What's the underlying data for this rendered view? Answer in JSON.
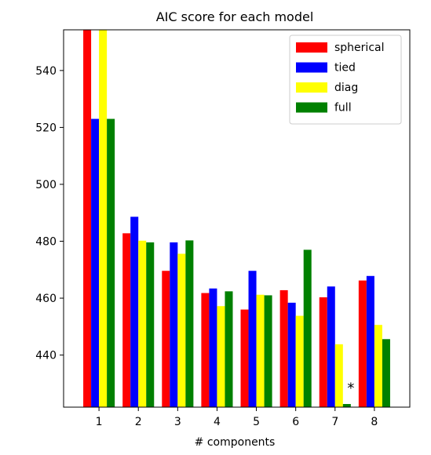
{
  "chart_data": {
    "type": "bar",
    "title": "AIC score for each model",
    "xlabel": "# components",
    "ylabel": "",
    "categories": [
      "1",
      "2",
      "3",
      "4",
      "5",
      "6",
      "7",
      "8"
    ],
    "series": [
      {
        "name": "spherical",
        "color": "#ff0000",
        "values": [
          560,
          482.8,
          469.6,
          461.8,
          456.0,
          462.8,
          460.3,
          466.2
        ]
      },
      {
        "name": "tied",
        "color": "#0000ff",
        "values": [
          523.0,
          488.6,
          479.6,
          463.4,
          469.6,
          458.4,
          464.1,
          467.8
        ]
      },
      {
        "name": "diag",
        "color": "#ffff00",
        "values": [
          560,
          480.2,
          475.6,
          457.2,
          461.2,
          453.8,
          443.8,
          450.6
        ]
      },
      {
        "name": "full",
        "color": "#008000",
        "values": [
          523.0,
          479.6,
          480.3,
          462.4,
          461.0,
          477.0,
          422.8,
          445.6
        ]
      }
    ],
    "ylim": [
      421.7,
      554.3
    ],
    "yticks": [
      "440",
      "460",
      "480",
      "500",
      "520",
      "540"
    ],
    "grid": false,
    "legend": "top-right",
    "annotation": {
      "text": "*",
      "category": "7",
      "y": 429
    }
  }
}
